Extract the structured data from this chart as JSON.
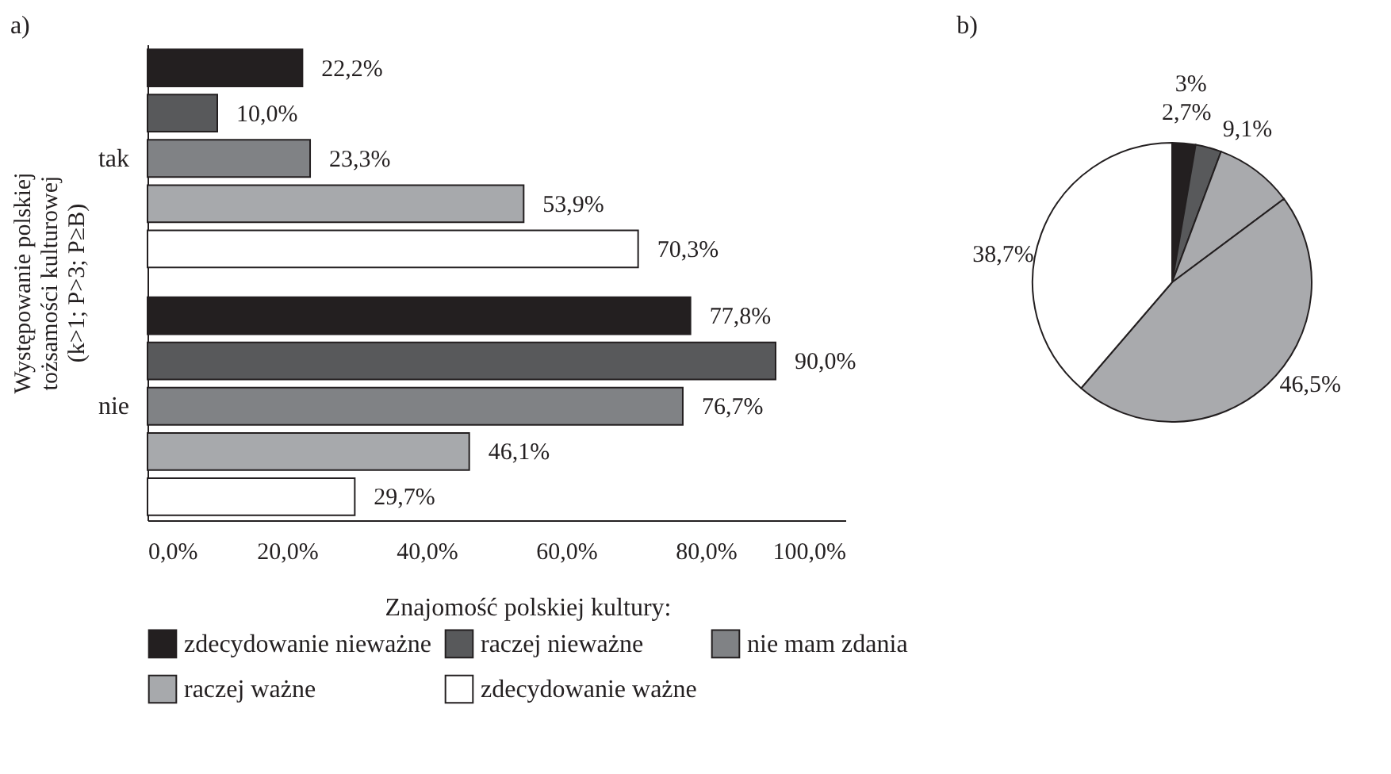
{
  "chart_data": [
    {
      "type": "bar",
      "orientation": "horizontal",
      "title": "a)",
      "ylabel": "Występowanie polskiej\ntożsamości kulturowej\n(k>1; P>3; P≥B)",
      "legend_title": "Znajomość polskiej kultury:",
      "legend": "bottom",
      "categories": [
        "tak",
        "nie"
      ],
      "series": [
        {
          "name": "zdecydowanie nieważne",
          "color": "#231f20",
          "values": [
            22.2,
            77.8
          ],
          "value_labels": [
            "22,2%",
            "77,8%"
          ]
        },
        {
          "name": "raczej nieważne",
          "color": "#58595b",
          "values": [
            10.0,
            90.0
          ],
          "value_labels": [
            "10,0%",
            "90,0%"
          ]
        },
        {
          "name": "nie mam zdania",
          "color": "#808285",
          "values": [
            23.3,
            76.7
          ],
          "value_labels": [
            "23,3%",
            "76,7%"
          ]
        },
        {
          "name": "raczej ważne",
          "color": "#a7a9ac",
          "values": [
            53.9,
            46.1
          ],
          "value_labels": [
            "53,9%",
            "46,1%"
          ]
        },
        {
          "name": "zdecydowanie ważne",
          "color": "#ffffff",
          "values": [
            70.3,
            29.7
          ],
          "value_labels": [
            "70,3%",
            "29,7%"
          ]
        }
      ],
      "xlim": [
        0,
        100
      ],
      "xticks": [
        {
          "value": 0,
          "label": "0,0%"
        },
        {
          "value": 20,
          "label": "20,0%"
        },
        {
          "value": 40,
          "label": "40,0%"
        },
        {
          "value": 60,
          "label": "60,0%"
        },
        {
          "value": 80,
          "label": "80,0%"
        },
        {
          "value": 100,
          "label": "100,0%"
        }
      ],
      "grid": false
    },
    {
      "type": "pie",
      "title": "b)",
      "categories": [
        null,
        null,
        null,
        null,
        null
      ],
      "values": [
        2.7,
        3,
        9.1,
        46.5,
        38.7
      ],
      "value_labels": [
        "2,7%",
        "3%",
        "9,1%",
        "46,5%",
        "38,7%"
      ],
      "colors": [
        "#231f20",
        "#58595b",
        "#a9aaad",
        "#a9aaad",
        "#ffffff"
      ]
    }
  ]
}
